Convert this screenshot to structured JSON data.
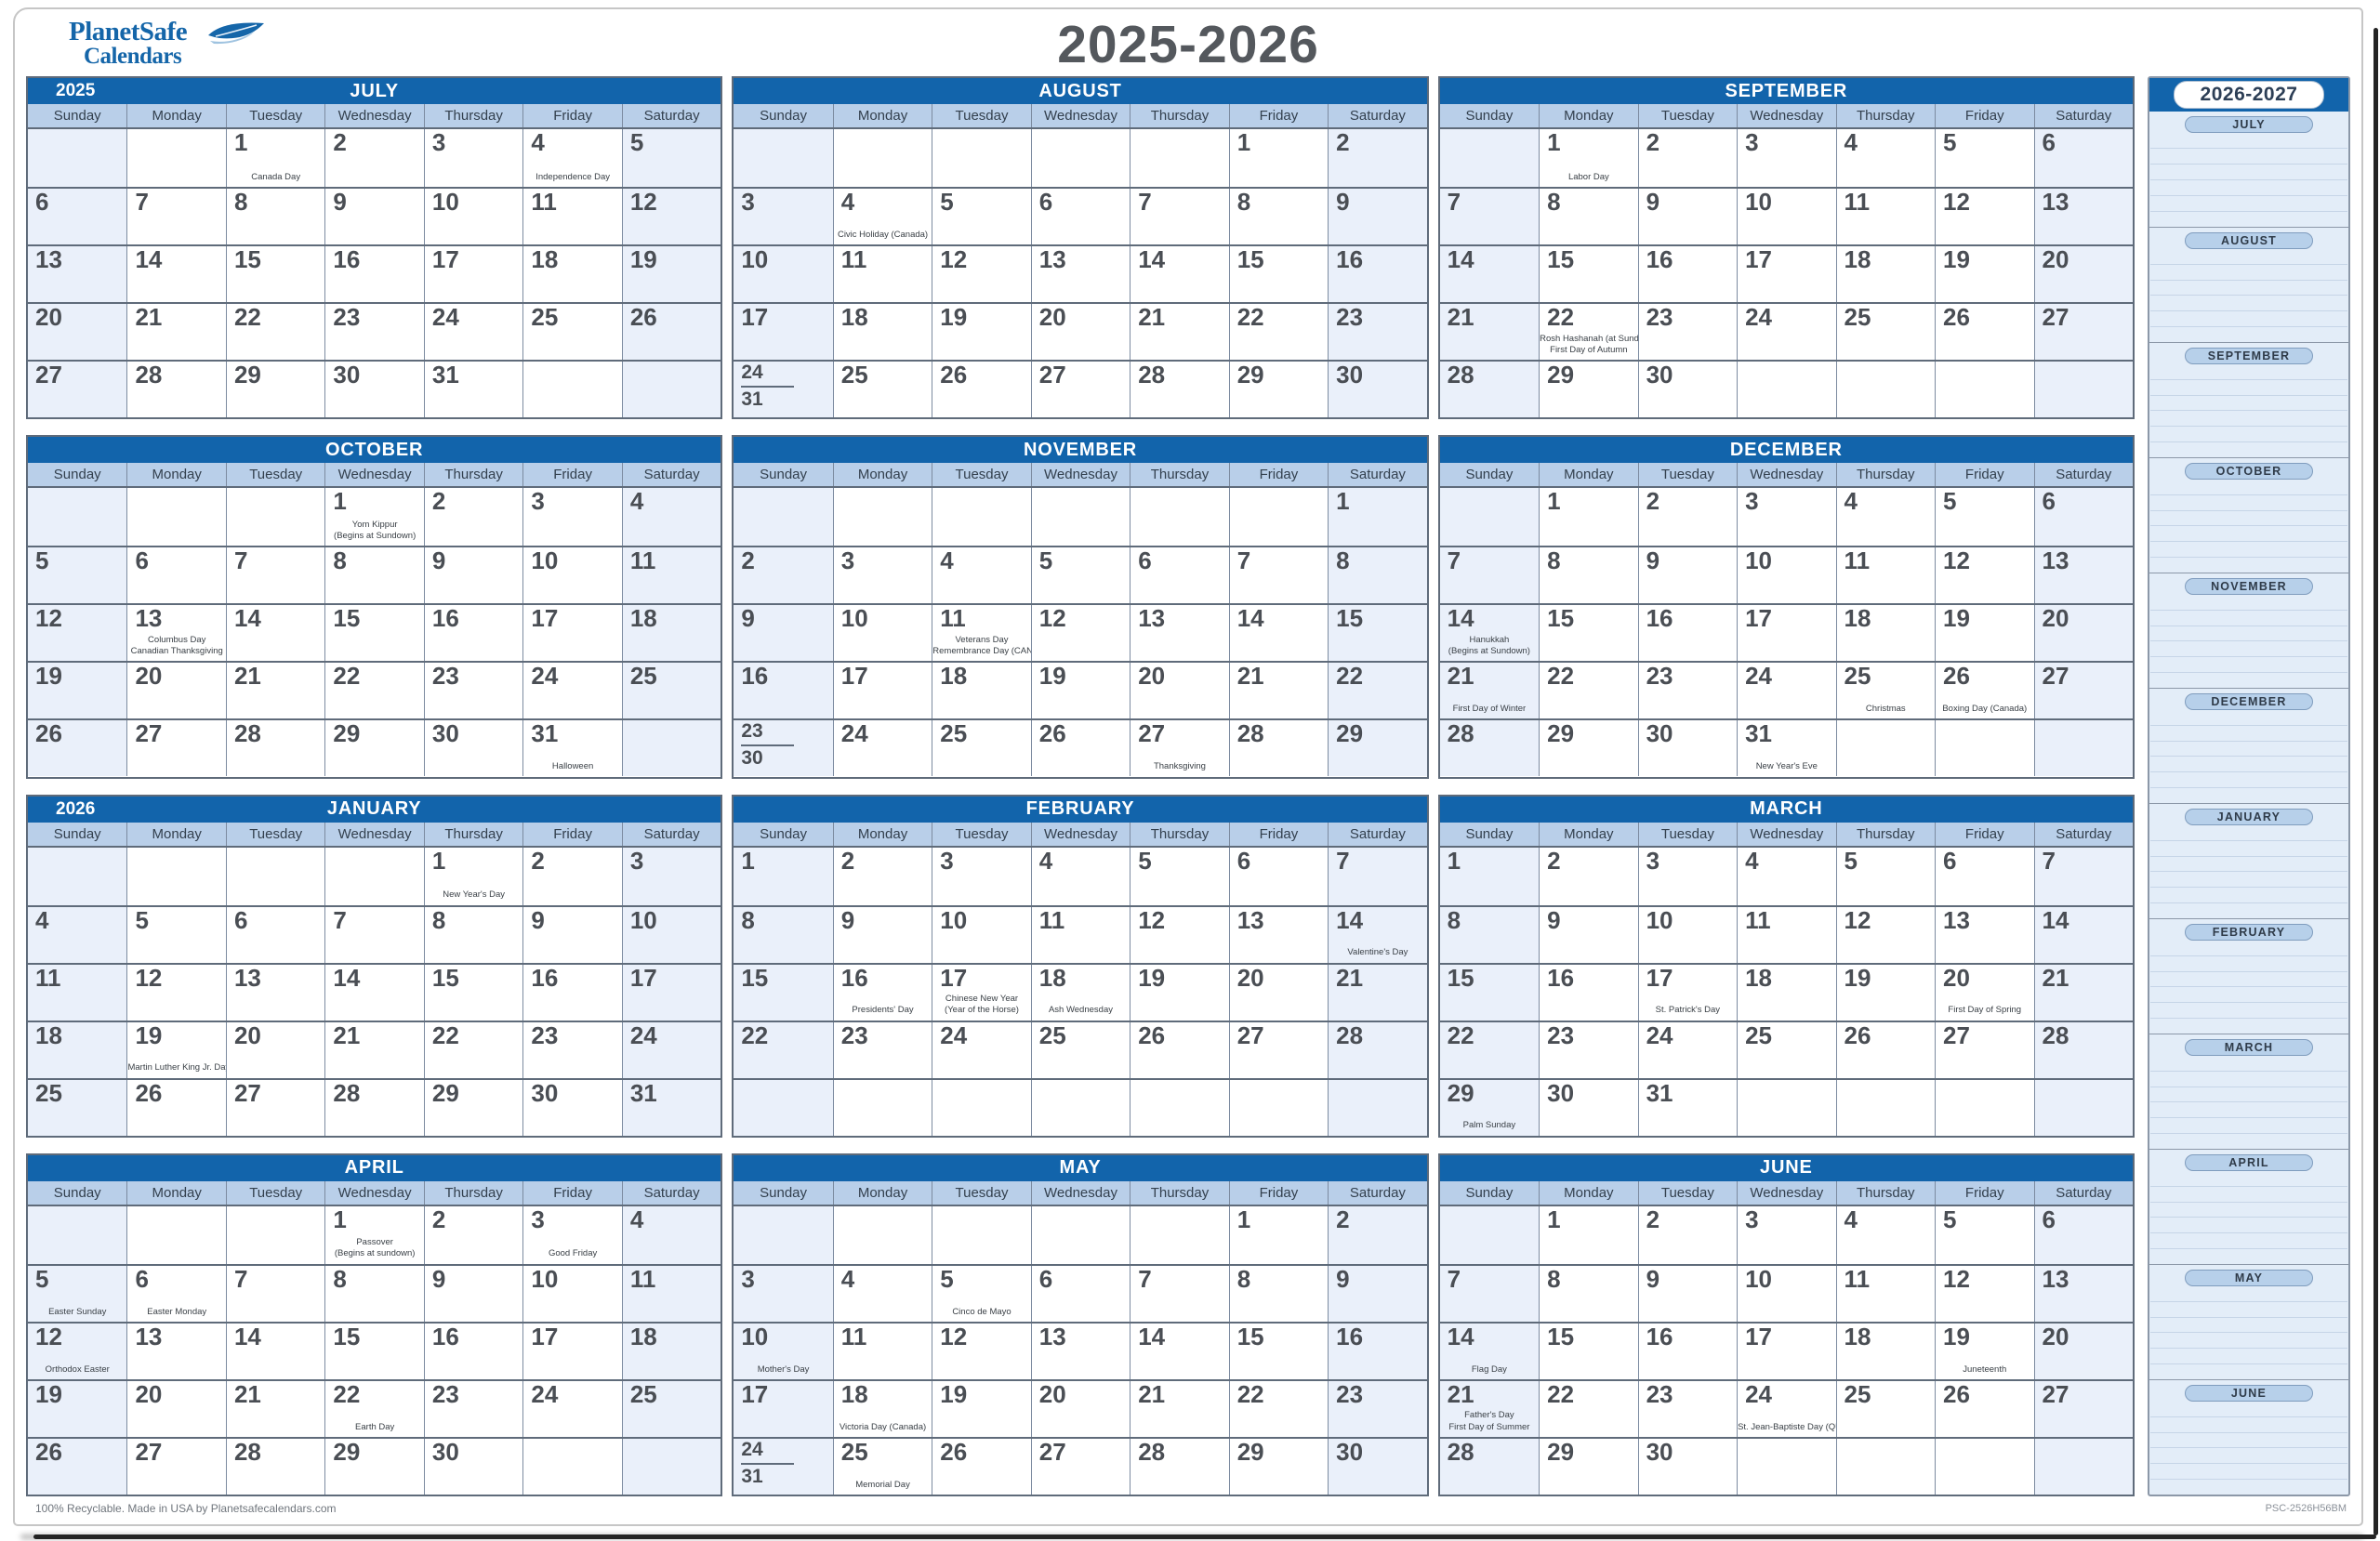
{
  "branding": {
    "logo_line1": "PlanetSafe",
    "logo_line2": "Calendars"
  },
  "title": "2025-2026",
  "weekday_headers": [
    "Sunday",
    "Monday",
    "Tuesday",
    "Wednesday",
    "Thursday",
    "Friday",
    "Saturday"
  ],
  "colors": {
    "header_blue": "#1264ab",
    "dow_row_bg": "#b9cfe9",
    "weekend_cell_bg": "#eaf0fa",
    "grid_border": "#5f6b7a",
    "day_number": "#4a4e54",
    "title_gray": "#54585d",
    "logo_blue": "#1566a9",
    "sidebar_bg": "#e3edf8",
    "sidebar_pill_bg": "#b7d0ea"
  },
  "months": [
    {
      "name": "JULY",
      "year_label": "2025",
      "weeks": [
        [
          "",
          "",
          {
            "d": "1",
            "h": [
              "Canada Day"
            ]
          },
          "2",
          "3",
          {
            "d": "4",
            "h": [
              "Independence Day"
            ]
          },
          "5"
        ],
        [
          "6",
          "7",
          "8",
          "9",
          "10",
          "11",
          "12"
        ],
        [
          "13",
          "14",
          "15",
          "16",
          "17",
          "18",
          "19"
        ],
        [
          "20",
          "21",
          "22",
          "23",
          "24",
          "25",
          "26"
        ],
        [
          "27",
          "28",
          "29",
          "30",
          "31",
          "",
          ""
        ]
      ]
    },
    {
      "name": "AUGUST",
      "year_label": "",
      "weeks": [
        [
          "",
          "",
          "",
          "",
          "",
          "1",
          "2"
        ],
        [
          "3",
          {
            "d": "4",
            "h": [
              "Civic Holiday (Canada)"
            ]
          },
          "5",
          "6",
          "7",
          "8",
          "9"
        ],
        [
          "10",
          "11",
          "12",
          "13",
          "14",
          "15",
          "16"
        ],
        [
          "17",
          "18",
          "19",
          "20",
          "21",
          "22",
          "23"
        ],
        [
          {
            "d": "24",
            "d2": "31"
          },
          "25",
          "26",
          "27",
          "28",
          "29",
          "30"
        ]
      ]
    },
    {
      "name": "SEPTEMBER",
      "year_label": "",
      "weeks": [
        [
          "",
          {
            "d": "1",
            "h": [
              "Labor Day"
            ]
          },
          "2",
          "3",
          "4",
          "5",
          "6"
        ],
        [
          "7",
          "8",
          "9",
          "10",
          "11",
          "12",
          "13"
        ],
        [
          "14",
          "15",
          "16",
          "17",
          "18",
          "19",
          "20"
        ],
        [
          "21",
          {
            "d": "22",
            "h": [
              "Rosh Hashanah (at Sundown)",
              "First Day of Autumn"
            ]
          },
          "23",
          "24",
          "25",
          "26",
          "27"
        ],
        [
          "28",
          "29",
          "30",
          "",
          "",
          "",
          ""
        ]
      ]
    },
    {
      "name": "OCTOBER",
      "year_label": "",
      "weeks": [
        [
          "",
          "",
          "",
          {
            "d": "1",
            "h": [
              "Yom Kippur",
              "(Begins at Sundown)"
            ]
          },
          "2",
          "3",
          "4"
        ],
        [
          "5",
          "6",
          "7",
          "8",
          "9",
          "10",
          "11"
        ],
        [
          "12",
          {
            "d": "13",
            "h": [
              "Columbus Day",
              "Canadian Thanksgiving"
            ]
          },
          "14",
          "15",
          "16",
          "17",
          "18"
        ],
        [
          "19",
          "20",
          "21",
          "22",
          "23",
          "24",
          "25"
        ],
        [
          "26",
          "27",
          "28",
          "29",
          "30",
          {
            "d": "31",
            "h": [
              "Halloween"
            ]
          },
          ""
        ]
      ]
    },
    {
      "name": "NOVEMBER",
      "year_label": "",
      "weeks": [
        [
          "",
          "",
          "",
          "",
          "",
          "",
          "1"
        ],
        [
          "2",
          "3",
          "4",
          "5",
          "6",
          "7",
          "8"
        ],
        [
          "9",
          "10",
          {
            "d": "11",
            "h": [
              "Veterans Day",
              "Remembrance Day (CAN)"
            ]
          },
          "12",
          "13",
          "14",
          "15"
        ],
        [
          "16",
          "17",
          "18",
          "19",
          "20",
          "21",
          "22"
        ],
        [
          {
            "d": "23",
            "d2": "30"
          },
          "24",
          "25",
          "26",
          {
            "d": "27",
            "h": [
              "Thanksgiving"
            ]
          },
          "28",
          "29"
        ]
      ]
    },
    {
      "name": "DECEMBER",
      "year_label": "",
      "weeks": [
        [
          "",
          "1",
          "2",
          "3",
          "4",
          "5",
          "6"
        ],
        [
          "7",
          "8",
          "9",
          "10",
          "11",
          "12",
          "13"
        ],
        [
          {
            "d": "14",
            "h": [
              "Hanukkah",
              "(Begins at Sundown)"
            ]
          },
          "15",
          "16",
          "17",
          "18",
          "19",
          "20"
        ],
        [
          {
            "d": "21",
            "h": [
              "First Day of Winter"
            ]
          },
          "22",
          "23",
          "24",
          {
            "d": "25",
            "h": [
              "Christmas"
            ]
          },
          {
            "d": "26",
            "h": [
              "Boxing Day (Canada)"
            ]
          },
          "27"
        ],
        [
          "28",
          "29",
          "30",
          {
            "d": "31",
            "h": [
              "New Year's Eve"
            ]
          },
          "",
          "",
          ""
        ]
      ]
    },
    {
      "name": "JANUARY",
      "year_label": "2026",
      "weeks": [
        [
          "",
          "",
          "",
          "",
          {
            "d": "1",
            "h": [
              "New Year's Day"
            ]
          },
          "2",
          "3"
        ],
        [
          "4",
          "5",
          "6",
          "7",
          "8",
          "9",
          "10"
        ],
        [
          "11",
          "12",
          "13",
          "14",
          "15",
          "16",
          "17"
        ],
        [
          "18",
          {
            "d": "19",
            "h": [
              "Martin Luther King Jr. Day"
            ]
          },
          "20",
          "21",
          "22",
          "23",
          "24"
        ],
        [
          "25",
          "26",
          "27",
          "28",
          "29",
          "30",
          "31"
        ]
      ]
    },
    {
      "name": "FEBRUARY",
      "year_label": "",
      "weeks": [
        [
          "1",
          "2",
          "3",
          "4",
          "5",
          "6",
          "7"
        ],
        [
          "8",
          "9",
          "10",
          "11",
          "12",
          "13",
          {
            "d": "14",
            "h": [
              "Valentine's Day"
            ]
          }
        ],
        [
          "15",
          {
            "d": "16",
            "h": [
              "Presidents' Day"
            ]
          },
          {
            "d": "17",
            "h": [
              "Chinese New Year",
              "(Year of the Horse)"
            ]
          },
          {
            "d": "18",
            "h": [
              "Ash Wednesday"
            ]
          },
          "19",
          "20",
          "21"
        ],
        [
          "22",
          "23",
          "24",
          "25",
          "26",
          "27",
          "28"
        ],
        [
          "",
          "",
          "",
          "",
          "",
          "",
          ""
        ]
      ]
    },
    {
      "name": "MARCH",
      "year_label": "",
      "weeks": [
        [
          "1",
          "2",
          "3",
          "4",
          "5",
          "6",
          "7"
        ],
        [
          "8",
          "9",
          "10",
          "11",
          "12",
          "13",
          "14"
        ],
        [
          "15",
          "16",
          {
            "d": "17",
            "h": [
              "St. Patrick's Day"
            ]
          },
          "18",
          "19",
          {
            "d": "20",
            "h": [
              "First Day of Spring"
            ]
          },
          "21"
        ],
        [
          "22",
          "23",
          "24",
          "25",
          "26",
          "27",
          "28"
        ],
        [
          {
            "d": "29",
            "h": [
              "Palm Sunday"
            ]
          },
          "30",
          "31",
          "",
          "",
          "",
          ""
        ]
      ]
    },
    {
      "name": "APRIL",
      "year_label": "",
      "weeks": [
        [
          "",
          "",
          "",
          {
            "d": "1",
            "h": [
              "Passover",
              "(Begins at sundown)"
            ]
          },
          "2",
          {
            "d": "3",
            "h": [
              "Good Friday"
            ]
          },
          "4"
        ],
        [
          {
            "d": "5",
            "h": [
              "Easter Sunday"
            ]
          },
          {
            "d": "6",
            "h": [
              "Easter Monday"
            ]
          },
          "7",
          "8",
          "9",
          "10",
          "11"
        ],
        [
          {
            "d": "12",
            "h": [
              "Orthodox Easter"
            ]
          },
          "13",
          "14",
          "15",
          "16",
          "17",
          "18"
        ],
        [
          "19",
          "20",
          "21",
          {
            "d": "22",
            "h": [
              "Earth Day"
            ]
          },
          "23",
          "24",
          "25"
        ],
        [
          "26",
          "27",
          "28",
          "29",
          "30",
          "",
          ""
        ]
      ]
    },
    {
      "name": "MAY",
      "year_label": "",
      "weeks": [
        [
          "",
          "",
          "",
          "",
          "",
          "1",
          "2"
        ],
        [
          "3",
          "4",
          {
            "d": "5",
            "h": [
              "Cinco de Mayo"
            ]
          },
          "6",
          "7",
          "8",
          "9"
        ],
        [
          {
            "d": "10",
            "h": [
              "Mother's Day"
            ]
          },
          "11",
          "12",
          "13",
          "14",
          "15",
          "16"
        ],
        [
          "17",
          {
            "d": "18",
            "h": [
              "Victoria Day (Canada)"
            ]
          },
          "19",
          "20",
          "21",
          "22",
          "23"
        ],
        [
          {
            "d": "24",
            "d2": "31"
          },
          {
            "d": "25",
            "h": [
              "Memorial Day"
            ]
          },
          "26",
          "27",
          "28",
          "29",
          "30"
        ]
      ]
    },
    {
      "name": "JUNE",
      "year_label": "",
      "weeks": [
        [
          "",
          "1",
          "2",
          "3",
          "4",
          "5",
          "6"
        ],
        [
          "7",
          "8",
          "9",
          "10",
          "11",
          "12",
          "13"
        ],
        [
          {
            "d": "14",
            "h": [
              "Flag Day"
            ]
          },
          "15",
          "16",
          "17",
          "18",
          {
            "d": "19",
            "h": [
              "Juneteenth"
            ]
          },
          "20"
        ],
        [
          {
            "d": "21",
            "h": [
              "Father's Day",
              "First Day of Summer"
            ]
          },
          "22",
          "23",
          {
            "d": "24",
            "h": [
              "St. Jean-Baptiste Day (QUE)"
            ]
          },
          "25",
          "26",
          "27"
        ],
        [
          "28",
          "29",
          "30",
          "",
          "",
          "",
          ""
        ]
      ]
    }
  ],
  "sidebar": {
    "title": "2026-2027",
    "months": [
      "JULY",
      "AUGUST",
      "SEPTEMBER",
      "OCTOBER",
      "NOVEMBER",
      "DECEMBER",
      "JANUARY",
      "FEBRUARY",
      "MARCH",
      "APRIL",
      "MAY",
      "JUNE"
    ]
  },
  "footer": {
    "left": "100% Recyclable. Made in USA by Planetsafecalendars.com",
    "right": "PSC-2526H56BM"
  }
}
